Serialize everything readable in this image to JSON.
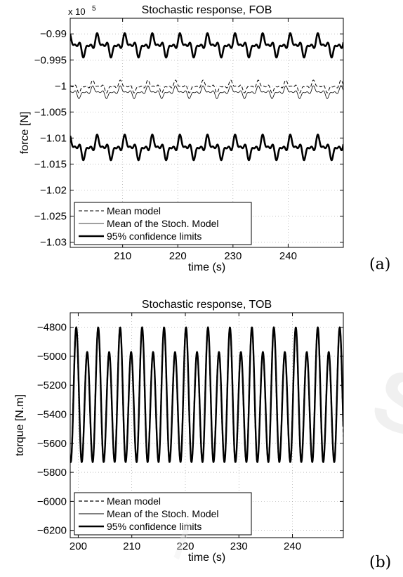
{
  "panel_labels": {
    "a": "(a)",
    "b": "(b)"
  },
  "chart_data": [
    {
      "type": "line",
      "title": "Stochastic response, FOB",
      "xlabel": "time (s)",
      "ylabel": "force [N]",
      "y_exponent_label": "x 10",
      "y_exponent_power": "5",
      "xlim": [
        200.5,
        250
      ],
      "ylim": [
        -1.031,
        -0.987
      ],
      "xticks": [
        210,
        220,
        230,
        240
      ],
      "xtick_labels": [
        "210",
        "220",
        "230",
        "240"
      ],
      "yticks": [
        -0.99,
        -0.995,
        -1.0,
        -1.005,
        -1.01,
        -1.015,
        -1.02,
        -1.025,
        -1.03
      ],
      "ytick_labels": [
        "−0.99",
        "−0.995",
        "−1",
        "−1.005",
        "−1.01",
        "−1.015",
        "−1.02",
        "−1.025",
        "−1.03"
      ],
      "grid": true,
      "legend_position": "bottom-left",
      "period_s": 5,
      "series": [
        {
          "name": "Mean model",
          "style": "dashed",
          "width": 1,
          "center": -1.0001,
          "amp": 0.001,
          "offset": 0.8
        },
        {
          "name": "Mean of the Stoch. Model",
          "style": "solid",
          "width": 0.8,
          "center": -1.0012,
          "amp": 0.001,
          "offset": 0.8
        },
        {
          "name": "95% confidence limits",
          "style": "solid",
          "width": 2.6,
          "center": -0.9922,
          "amp": 0.0019,
          "offset": 0,
          "group": "upper"
        },
        {
          "name": "95% confidence limits",
          "style": "solid",
          "width": 2.6,
          "center": -1.0118,
          "amp": 0.002,
          "offset": 0,
          "group": "lower",
          "legend": false
        }
      ],
      "legend_entries": [
        "Mean model",
        "Mean of the Stoch. Model",
        "95% confidence limits"
      ]
    },
    {
      "type": "line",
      "title": "Stochastic response, TOB",
      "xlabel": "time (s)",
      "ylabel": "torque [N.m]",
      "xlim": [
        198.5,
        249.5
      ],
      "ylim": [
        -6250,
        -4700
      ],
      "xticks": [
        200,
        210,
        220,
        230,
        240
      ],
      "xtick_labels": [
        "200",
        "210",
        "220",
        "230",
        "240"
      ],
      "yticks": [
        -4800,
        -5000,
        -5200,
        -5400,
        -5600,
        -5800,
        -6000,
        -6200
      ],
      "ytick_labels": [
        "−4800",
        "−5000",
        "−5200",
        "−5400",
        "−5600",
        "−5800",
        "−6000",
        "−6200"
      ],
      "grid": true,
      "legend_position": "bottom-left",
      "period_s": 2.05,
      "peak_high": -4800,
      "peak_low": -4970,
      "trough": -5730,
      "series": [
        {
          "name": "Mean model",
          "style": "dashed",
          "width": 1.2,
          "phase": 0.03
        },
        {
          "name": "Mean of the Stoch. Model",
          "style": "solid",
          "width": 0.9,
          "phase": -0.03
        },
        {
          "name": "95% confidence limits",
          "style": "solid",
          "width": 2.4,
          "phase": 0
        }
      ],
      "legend_entries": [
        "Mean model",
        "Mean of the Stoch. Model",
        "95% confidence limits"
      ]
    }
  ]
}
